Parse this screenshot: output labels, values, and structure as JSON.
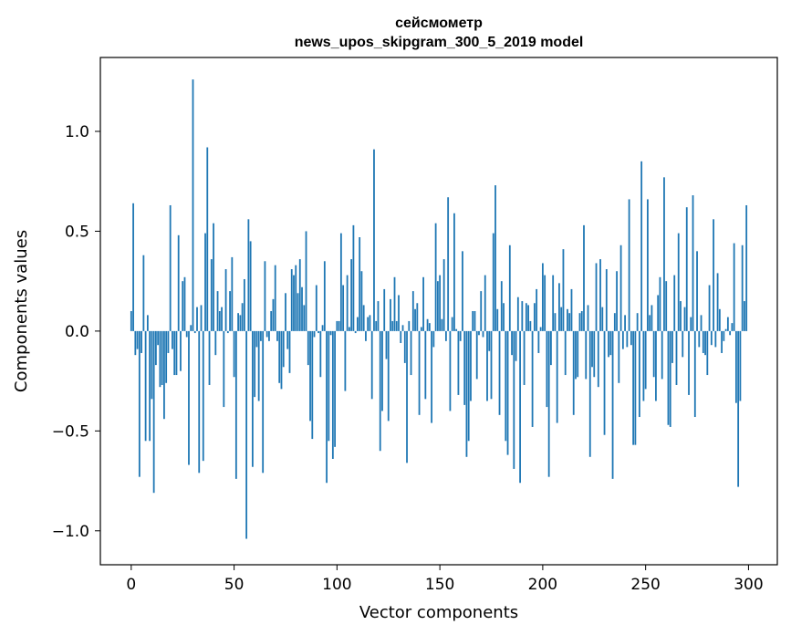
{
  "chart_data": {
    "type": "bar",
    "title_line1": "сейсмометр",
    "title_line2": "news_upos_skipgram_300_5_2019 model",
    "xlabel": "Vector components",
    "ylabel": "Components values",
    "xlim": [
      -15,
      314
    ],
    "ylim": [
      -1.17,
      1.37
    ],
    "xticks": [
      0,
      50,
      100,
      150,
      200,
      250,
      300
    ],
    "xtick_labels": [
      "0",
      "50",
      "100",
      "150",
      "200",
      "250",
      "300"
    ],
    "yticks": [
      -1.0,
      -0.5,
      0.0,
      0.5,
      1.0
    ],
    "ytick_labels": [
      "−1.0",
      "−0.5",
      "0.0",
      "0.5",
      "1.0"
    ],
    "bar_color": "#1f77b4",
    "bar_width": 0.8,
    "values": [
      0.1,
      0.64,
      -0.12,
      -0.09,
      -0.73,
      -0.11,
      0.38,
      -0.55,
      0.08,
      -0.55,
      -0.34,
      -0.81,
      -0.17,
      -0.07,
      -0.28,
      -0.27,
      -0.44,
      -0.26,
      -0.11,
      0.63,
      -0.09,
      -0.22,
      -0.22,
      0.48,
      -0.2,
      0.25,
      0.27,
      -0.03,
      -0.67,
      0.03,
      1.26,
      -0.01,
      0.12,
      -0.71,
      0.13,
      -0.65,
      0.49,
      0.92,
      -0.27,
      0.36,
      0.54,
      -0.12,
      0.2,
      0.1,
      0.12,
      -0.38,
      0.31,
      -0.01,
      0.2,
      0.37,
      -0.23,
      -0.74,
      0.09,
      0.08,
      0.14,
      0.26,
      -1.04,
      0.56,
      0.45,
      -0.68,
      -0.33,
      -0.08,
      -0.35,
      -0.05,
      -0.71,
      0.35,
      -0.03,
      -0.05,
      0.1,
      0.16,
      0.33,
      -0.05,
      -0.26,
      -0.29,
      -0.18,
      0.19,
      -0.09,
      -0.21,
      0.31,
      0.28,
      0.33,
      0.19,
      0.36,
      0.22,
      0.13,
      0.5,
      -0.17,
      -0.45,
      -0.54,
      -0.03,
      0.23,
      -0.01,
      -0.23,
      0.03,
      0.35,
      -0.76,
      -0.55,
      -0.02,
      -0.64,
      -0.58,
      0.05,
      0.05,
      0.49,
      0.23,
      -0.3,
      0.28,
      0.02,
      0.36,
      0.53,
      -0.01,
      0.07,
      0.47,
      0.3,
      0.13,
      -0.05,
      0.07,
      0.08,
      -0.34,
      0.91,
      0.05,
      0.15,
      -0.6,
      -0.4,
      0.21,
      -0.14,
      -0.45,
      0.16,
      0.05,
      0.27,
      0.05,
      0.18,
      -0.06,
      0.03,
      -0.16,
      -0.66,
      0.05,
      -0.22,
      0.2,
      0.11,
      0.14,
      -0.42,
      0.02,
      0.27,
      -0.34,
      0.06,
      0.04,
      -0.46,
      -0.08,
      0.54,
      0.25,
      0.28,
      0.06,
      0.36,
      -0.05,
      0.67,
      -0.4,
      0.07,
      0.59,
      0.01,
      -0.32,
      -0.05,
      0.4,
      -0.37,
      -0.63,
      -0.55,
      -0.35,
      0.1,
      0.1,
      -0.24,
      -0.02,
      0.2,
      -0.03,
      0.28,
      -0.35,
      -0.1,
      -0.34,
      0.49,
      0.73,
      0.11,
      -0.42,
      0.25,
      0.14,
      -0.55,
      -0.62,
      0.43,
      -0.12,
      -0.69,
      -0.15,
      0.17,
      -0.76,
      0.15,
      -0.27,
      0.14,
      0.13,
      0.05,
      -0.48,
      0.14,
      0.21,
      -0.11,
      0.02,
      0.34,
      0.28,
      -0.38,
      -0.73,
      -0.17,
      0.28,
      0.09,
      -0.46,
      0.24,
      0.12,
      0.41,
      -0.22,
      0.11,
      0.09,
      0.21,
      -0.42,
      -0.24,
      -0.23,
      0.09,
      0.1,
      0.53,
      -0.24,
      0.13,
      -0.63,
      -0.18,
      -0.23,
      0.34,
      -0.28,
      0.36,
      0.12,
      -0.52,
      0.31,
      -0.13,
      -0.12,
      -0.74,
      0.09,
      0.3,
      -0.26,
      0.43,
      -0.09,
      0.08,
      -0.08,
      0.66,
      -0.07,
      -0.57,
      -0.57,
      0.09,
      -0.43,
      0.85,
      -0.35,
      -0.29,
      0.66,
      0.08,
      0.13,
      -0.23,
      -0.35,
      0.18,
      0.27,
      -0.24,
      0.77,
      0.25,
      -0.47,
      -0.48,
      -0.16,
      0.28,
      -0.27,
      0.49,
      0.15,
      -0.13,
      0.12,
      0.62,
      -0.32,
      0.07,
      0.68,
      -0.43,
      0.4,
      -0.08,
      0.08,
      -0.11,
      -0.12,
      -0.22,
      0.23,
      -0.07,
      0.56,
      -0.08,
      0.29,
      0.11,
      -0.11,
      -0.05,
      0.01,
      0.07,
      -0.02,
      0.04,
      0.44,
      -0.36,
      -0.78,
      -0.35,
      0.43,
      0.15,
      0.63
    ]
  }
}
